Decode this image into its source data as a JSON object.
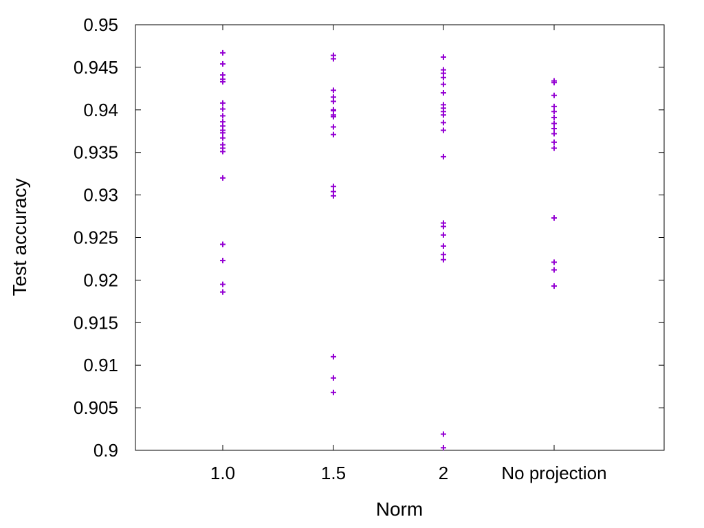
{
  "chart_data": {
    "type": "scatter",
    "xlabel": "Norm",
    "ylabel": "Test accuracy",
    "categories": [
      "1.0",
      "1.5",
      "2",
      "No projection"
    ],
    "ylim": [
      0.9,
      0.95
    ],
    "yticks": [
      "0.9",
      "0.905",
      "0.91",
      "0.915",
      "0.92",
      "0.925",
      "0.93",
      "0.935",
      "0.94",
      "0.945",
      "0.95"
    ],
    "grid": false,
    "marker": "+",
    "point_color": "#9400d3",
    "series": [
      {
        "category": "1.0",
        "values": [
          0.9467,
          0.9454,
          0.9441,
          0.9436,
          0.9433,
          0.9408,
          0.9401,
          0.9393,
          0.9386,
          0.9381,
          0.9376,
          0.9373,
          0.9367,
          0.9359,
          0.9355,
          0.9351,
          0.932,
          0.9242,
          0.9223,
          0.9195,
          0.9186
        ]
      },
      {
        "category": "1.5",
        "values": [
          0.9464,
          0.946,
          0.9423,
          0.9415,
          0.941,
          0.94,
          0.9399,
          0.9394,
          0.9392,
          0.938,
          0.9371,
          0.931,
          0.9304,
          0.9299,
          0.911,
          0.9085,
          0.9068
        ]
      },
      {
        "category": "2",
        "values": [
          0.9462,
          0.9447,
          0.9443,
          0.9438,
          0.943,
          0.942,
          0.9406,
          0.9402,
          0.9398,
          0.9394,
          0.9385,
          0.9376,
          0.9345,
          0.9267,
          0.9263,
          0.9253,
          0.924,
          0.923,
          0.9224,
          0.9019,
          0.9003
        ]
      },
      {
        "category": "No projection",
        "values": [
          0.9434,
          0.9432,
          0.9417,
          0.9404,
          0.9398,
          0.9391,
          0.9384,
          0.9378,
          0.9372,
          0.9362,
          0.9355,
          0.9273,
          0.9221,
          0.9212,
          0.9193
        ]
      }
    ]
  }
}
